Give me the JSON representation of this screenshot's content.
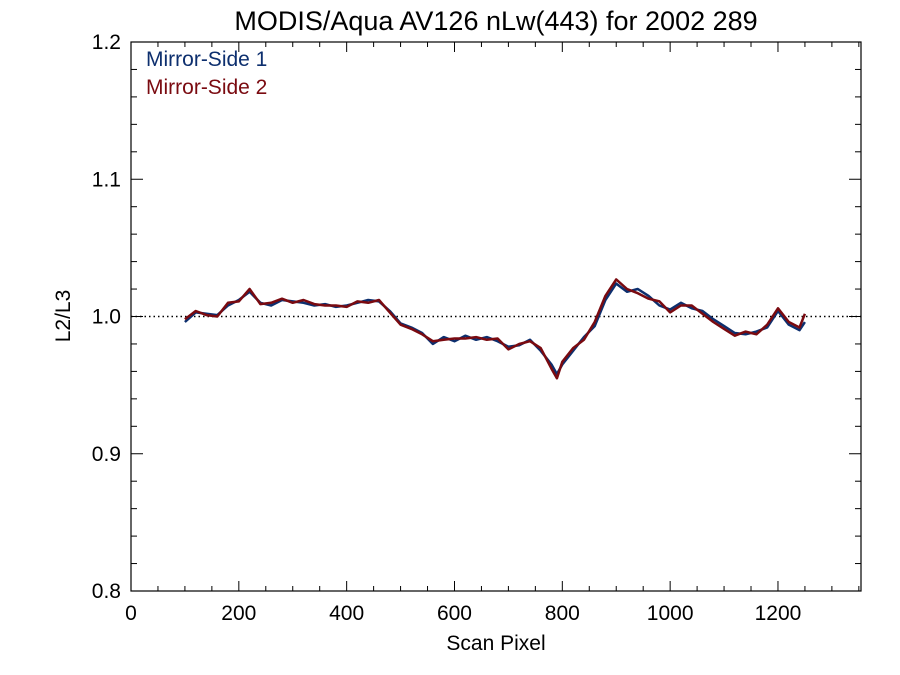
{
  "chart_data": {
    "type": "line",
    "title": "MODIS/Aqua AV126 nLw(443) for 2002 289",
    "xlabel": "Scan Pixel",
    "ylabel": "L2/L3",
    "xlim": [
      0,
      1354
    ],
    "ylim": [
      0.8,
      1.2
    ],
    "xticks": [
      0,
      200,
      400,
      600,
      800,
      1000,
      1200
    ],
    "xtick_labels": [
      "0",
      "200",
      "400",
      "600",
      "800",
      "1000",
      "1200"
    ],
    "yticks": [
      0.8,
      0.9,
      1.0,
      1.1,
      1.2
    ],
    "ytick_labels": [
      "0.8",
      "0.9",
      "1.0",
      "1.1",
      "1.2"
    ],
    "reference_line": 1.0,
    "legend_position": "top-left",
    "colors": {
      "Mirror-Side 1": "#0d2f6e",
      "Mirror-Side 2": "#7a0a10"
    },
    "legend": [
      "Mirror-Side 1",
      "Mirror-Side 2"
    ],
    "x": [
      100,
      120,
      140,
      160,
      180,
      200,
      220,
      240,
      260,
      280,
      300,
      320,
      340,
      360,
      380,
      400,
      420,
      440,
      460,
      480,
      500,
      520,
      540,
      560,
      580,
      600,
      620,
      640,
      660,
      680,
      700,
      720,
      740,
      760,
      780,
      790,
      800,
      820,
      840,
      860,
      880,
      900,
      920,
      940,
      960,
      980,
      1000,
      1020,
      1040,
      1060,
      1080,
      1100,
      1120,
      1140,
      1160,
      1180,
      1200,
      1220,
      1240,
      1250
    ],
    "series": [
      {
        "name": "Mirror-Side 1",
        "values": [
          0.996,
          1.003,
          1.002,
          1.001,
          1.008,
          1.012,
          1.018,
          1.01,
          1.008,
          1.012,
          1.011,
          1.01,
          1.008,
          1.009,
          1.007,
          1.008,
          1.01,
          1.012,
          1.011,
          1.004,
          0.995,
          0.992,
          0.988,
          0.98,
          0.985,
          0.982,
          0.986,
          0.983,
          0.985,
          0.982,
          0.978,
          0.979,
          0.983,
          0.975,
          0.965,
          0.958,
          0.965,
          0.975,
          0.985,
          0.993,
          1.012,
          1.024,
          1.018,
          1.02,
          1.015,
          1.008,
          1.005,
          1.01,
          1.006,
          1.004,
          0.998,
          0.993,
          0.988,
          0.987,
          0.989,
          0.992,
          1.004,
          0.994,
          0.99,
          0.996
        ]
      },
      {
        "name": "Mirror-Side 2",
        "values": [
          0.998,
          1.004,
          1.001,
          1.0,
          1.01,
          1.011,
          1.02,
          1.009,
          1.01,
          1.013,
          1.01,
          1.012,
          1.009,
          1.008,
          1.008,
          1.007,
          1.011,
          1.01,
          1.012,
          1.003,
          0.994,
          0.991,
          0.987,
          0.982,
          0.983,
          0.984,
          0.984,
          0.985,
          0.983,
          0.984,
          0.976,
          0.98,
          0.982,
          0.977,
          0.962,
          0.955,
          0.967,
          0.977,
          0.983,
          0.996,
          1.015,
          1.027,
          1.02,
          1.017,
          1.013,
          1.011,
          1.003,
          1.008,
          1.008,
          1.002,
          0.996,
          0.991,
          0.986,
          0.989,
          0.987,
          0.994,
          1.006,
          0.996,
          0.992,
          1.002
        ]
      }
    ]
  }
}
